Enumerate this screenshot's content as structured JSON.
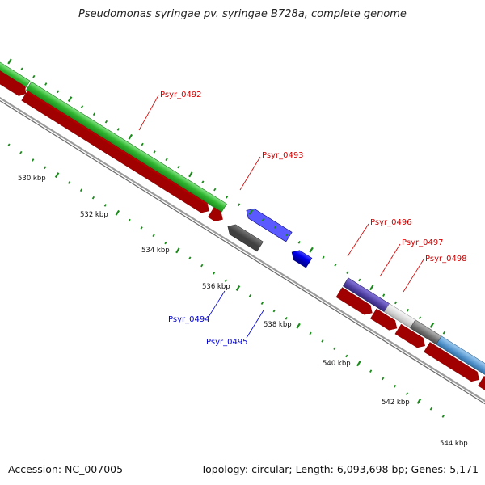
{
  "title": "Pseudomonas syringae pv. syringae B728a, complete genome",
  "footer": {
    "accession": "Accession: NC_007005",
    "summary": "Topology: circular; Length: 6,093,698 bp; Genes: 5,171"
  },
  "ticks": [
    {
      "label": "530 kbp"
    },
    {
      "label": "532 kbp"
    },
    {
      "label": "534 kbp"
    },
    {
      "label": "536 kbp"
    },
    {
      "label": "538 kbp"
    },
    {
      "label": "540 kbp"
    },
    {
      "label": "542 kbp"
    },
    {
      "label": "544 kbp"
    }
  ],
  "genes": [
    {
      "name": "Psyr_0492",
      "strand": "forward",
      "color": "#e60000"
    },
    {
      "name": "Psyr_0493",
      "strand": "forward",
      "color": "#e60000"
    },
    {
      "name": "Psyr_0494",
      "strand": "reverse",
      "color": "#0000e6"
    },
    {
      "name": "Psyr_0495",
      "strand": "reverse",
      "color": "#0000e6"
    },
    {
      "name": "Psyr_0496",
      "strand": "forward",
      "color": "#e60000"
    },
    {
      "name": "Psyr_0497",
      "strand": "forward",
      "color": "#e60000"
    },
    {
      "name": "Psyr_0498",
      "strand": "forward",
      "color": "#e60000"
    }
  ],
  "colors": {
    "forward_cds": "#e60000",
    "reverse_cds": "#0000e6",
    "green_track": "#3cc43c",
    "backbone": "#999999",
    "tick": "#1a8a1a"
  }
}
